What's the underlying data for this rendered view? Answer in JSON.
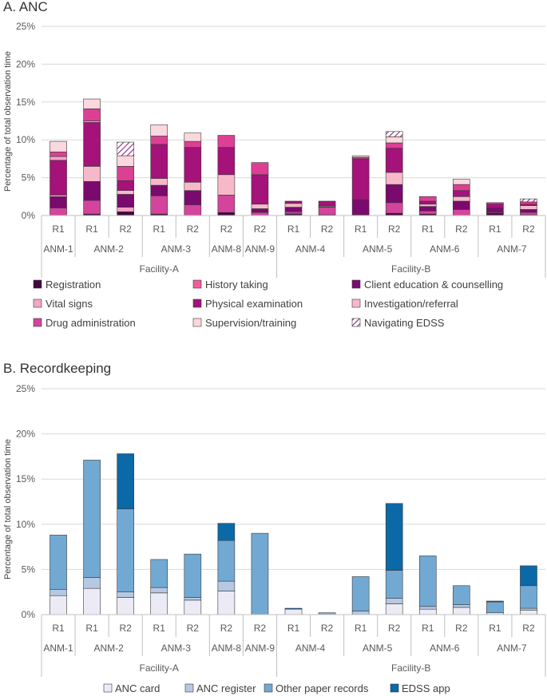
{
  "chart_data": [
    {
      "type": "bar",
      "stacked": true,
      "title": "A. ANC",
      "ylabel": "Percentage of total observation time",
      "ylim": [
        0,
        25
      ],
      "yticks": [
        "0%",
        "5%",
        "10%",
        "15%",
        "20%",
        "25%"
      ],
      "grid": true,
      "legend_position": "bottom",
      "categories": [
        "R1",
        "R1",
        "R2",
        "R1",
        "R2",
        "R2",
        "R2",
        "R1",
        "R2",
        "R1",
        "R2",
        "R1",
        "R2",
        "R1",
        "R2"
      ],
      "anm_groups": [
        {
          "label": "ANM-1",
          "span": 1
        },
        {
          "label": "ANM-2",
          "span": 2
        },
        {
          "label": "ANM-3",
          "span": 2
        },
        {
          "label": "ANM-8",
          "span": 1
        },
        {
          "label": "ANM-9",
          "span": 1
        },
        {
          "label": "ANM-4",
          "span": 2
        },
        {
          "label": "ANM-5",
          "span": 2
        },
        {
          "label": "ANM-6",
          "span": 2
        },
        {
          "label": "ANM-7",
          "span": 2
        }
      ],
      "facility_groups": [
        {
          "label": "Facility-A",
          "span": 7
        },
        {
          "label": "Facility-B",
          "span": 8
        }
      ],
      "series": [
        {
          "name": "Registration",
          "color": "#3f0a3e",
          "values": [
            0,
            0.2,
            0.5,
            0.2,
            0,
            0.4,
            0,
            0.2,
            0.1,
            0,
            0.3,
            0.2,
            0,
            0.3,
            0.1
          ]
        },
        {
          "name": "Vital signs",
          "color": "#f4a2c1",
          "values": [
            0,
            0,
            0.6,
            0,
            0,
            0,
            0,
            0.1,
            0,
            0,
            0,
            0,
            0,
            0,
            0
          ]
        },
        {
          "name": "Drug administration",
          "color": "#d4449d",
          "values": [
            1,
            1.8,
            0,
            2.4,
            1.4,
            2.3,
            0.4,
            0.2,
            1,
            0.1,
            1.4,
            0.4,
            0.8,
            0.1,
            0.3
          ]
        },
        {
          "name": "History taking",
          "color": "#ef5e9a",
          "values": [
            0,
            0,
            0,
            0,
            0,
            0,
            0,
            0,
            0,
            0,
            0,
            0,
            0,
            0,
            0
          ]
        },
        {
          "name": "Physical examination",
          "color": "#b01283",
          "values": [
            0,
            0,
            0,
            0,
            0,
            0,
            0,
            0,
            0,
            0,
            0,
            0,
            0,
            0,
            0
          ]
        },
        {
          "name": "Supervision/training",
          "color": "#fde0e6",
          "values": [
            0,
            0,
            0,
            0,
            0,
            0,
            0,
            0,
            0,
            0,
            0,
            0,
            0,
            0,
            0
          ]
        },
        {
          "name": "Client education & counselling",
          "color": "#7a0a6e",
          "values": [
            1.5,
            2.5,
            1.7,
            1.4,
            1.9,
            0,
            0.5,
            0.6,
            0.1,
            2,
            2.4,
            0.6,
            1.1,
            0.6,
            0.4
          ]
        },
        {
          "name": "Investigation/referral",
          "color": "#f7b9c9",
          "values": [
            0.2,
            2,
            0.5,
            0.9,
            1.1,
            2.7,
            0.6,
            0.5,
            0.1,
            0,
            1.6,
            0.3,
            0.6,
            0,
            0.5
          ]
        },
        {
          "name": "Physical examination",
          "color": "#a4127a",
          "values": [
            4.6,
            5.8,
            1.3,
            4.5,
            4.6,
            3.6,
            3.9,
            0.3,
            0.6,
            5.4,
            3.2,
            0.4,
            0.8,
            0.5,
            0.2
          ]
        },
        {
          "name": "Vital signs",
          "color": "#f2a6c6",
          "values": [
            0.5,
            0.2,
            0,
            0,
            0,
            0,
            0,
            0,
            0,
            0,
            0,
            0,
            0,
            0,
            0
          ]
        },
        {
          "name": "Drug administration",
          "color": "#dd3f95",
          "values": [
            0.6,
            1.6,
            1.9,
            1.1,
            0.8,
            1.6,
            1.6,
            0,
            0,
            0.2,
            0.7,
            0.6,
            0.8,
            0.2,
            0.3
          ]
        },
        {
          "name": "Supervision/training",
          "color": "#fbd7de",
          "values": [
            1.4,
            1.3,
            1.4,
            1.5,
            1.1,
            0,
            0,
            0,
            0,
            0.2,
            0.8,
            0,
            0.7,
            0,
            0
          ]
        },
        {
          "name": "Navigating EDSS",
          "color": "#ffffff",
          "pattern": "hatch",
          "values": [
            0,
            0,
            1.8,
            0,
            0,
            0,
            0,
            0,
            0,
            0,
            0.7,
            0,
            0,
            0,
            0.4
          ]
        }
      ],
      "legend": [
        "Registration",
        "History taking",
        "Client education & counselling",
        "Vital signs",
        "Physical examination",
        "Investigation/referral",
        "Drug administration",
        "Supervision/training",
        "Navigating EDSS"
      ],
      "legend_colors": [
        "#3f0a3e",
        "#ef5e9a",
        "#7a0a6e",
        "#f2a6c6",
        "#a4127a",
        "#f7b9c9",
        "#d4449d",
        "#fbd7de",
        "hatch"
      ]
    },
    {
      "type": "bar",
      "stacked": true,
      "title": "B. Recordkeeping",
      "ylabel": "Percentage of total observation time",
      "ylim": [
        0,
        25
      ],
      "yticks": [
        "0%",
        "5%",
        "10%",
        "15%",
        "20%",
        "25%"
      ],
      "grid": true,
      "legend_position": "bottom",
      "categories": [
        "R1",
        "R1",
        "R2",
        "R1",
        "R2",
        "R2",
        "R2",
        "R1",
        "R2",
        "R1",
        "R2",
        "R1",
        "R2",
        "R1",
        "R2"
      ],
      "anm_groups": [
        {
          "label": "ANM-1",
          "span": 1
        },
        {
          "label": "ANM-2",
          "span": 2
        },
        {
          "label": "ANM-3",
          "span": 2
        },
        {
          "label": "ANM-8",
          "span": 1
        },
        {
          "label": "ANM-9",
          "span": 1
        },
        {
          "label": "ANM-4",
          "span": 2
        },
        {
          "label": "ANM-5",
          "span": 2
        },
        {
          "label": "ANM-6",
          "span": 2
        },
        {
          "label": "ANM-7",
          "span": 2
        }
      ],
      "facility_groups": [
        {
          "label": "Facility-A",
          "span": 7
        },
        {
          "label": "Facility-B",
          "span": 8
        }
      ],
      "series": [
        {
          "name": "ANC card",
          "color": "#ecebf5",
          "values": [
            2.1,
            2.9,
            1.9,
            2.4,
            1.6,
            2.6,
            0,
            0.6,
            0,
            0,
            1.2,
            0.6,
            0.8,
            0.2,
            0.5
          ]
        },
        {
          "name": "ANC register",
          "color": "#b6c8e2",
          "values": [
            0.7,
            1.2,
            0.6,
            0.6,
            0.3,
            1.1,
            0,
            0,
            0,
            0.4,
            0.6,
            0.3,
            0.3,
            0,
            0.2
          ]
        },
        {
          "name": "Other paper records",
          "color": "#72a9d3",
          "values": [
            6,
            13,
            9.2,
            3.1,
            4.8,
            4.5,
            9,
            0,
            0.2,
            3.8,
            3.1,
            5.6,
            2.1,
            1.2,
            2.5
          ]
        },
        {
          "name": "EDSS app",
          "color": "#0a69a6",
          "values": [
            0,
            0,
            6.1,
            0,
            0,
            1.9,
            0,
            0.1,
            0,
            0,
            7.4,
            0,
            0,
            0.1,
            2.2
          ]
        }
      ],
      "legend": [
        "ANC card",
        "ANC register",
        "Other paper records",
        "EDSS app"
      ]
    }
  ]
}
